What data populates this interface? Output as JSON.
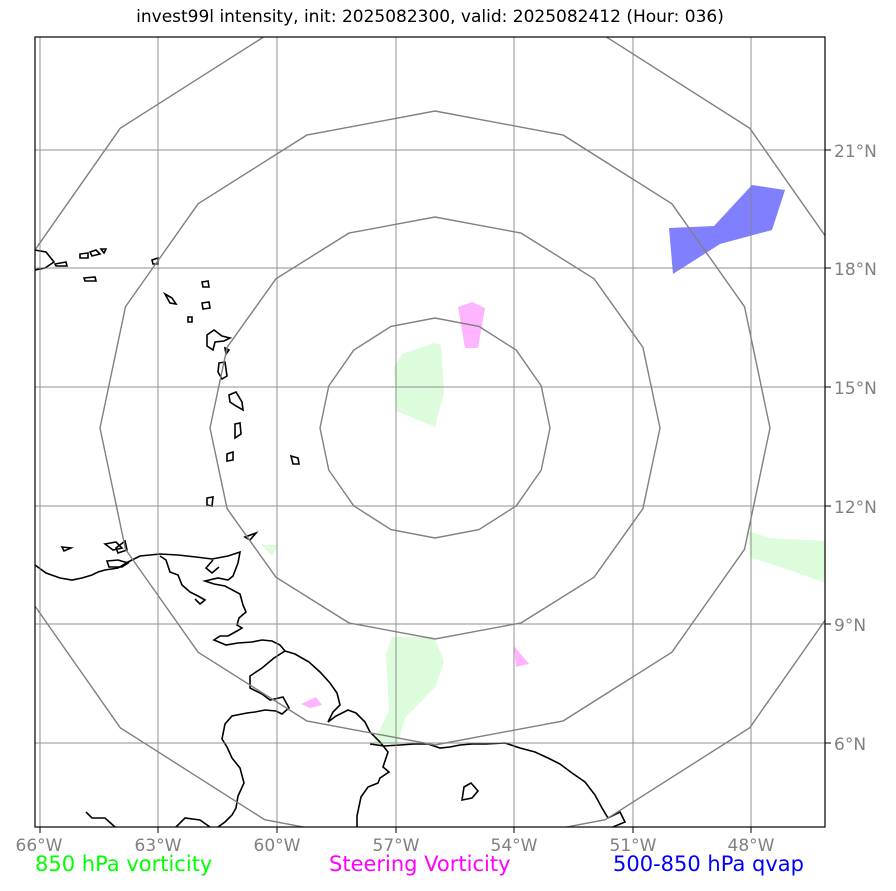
{
  "title": "invest99l intensity, init: 2025082300, valid: 2025082412 (Hour: 036)",
  "lon_labels": [
    "66°W",
    "63°W",
    "60°W",
    "57°W",
    "54°W",
    "51°W",
    "48°W"
  ],
  "lat_labels": [
    "21°N",
    "18°N",
    "15°N",
    "12°N",
    "9°N",
    "6°N"
  ],
  "legend": [
    {
      "label": "850 hPa vorticity",
      "color": "#00ff00"
    },
    {
      "label": "Steering Vorticity",
      "color": "#ff00ff"
    },
    {
      "label": "500-850 hPa qvap",
      "color": "#0000ff"
    }
  ],
  "colors": {
    "gridline": "#808080",
    "range_ring": "#808080",
    "coastline": "#000000",
    "vorticity_850_fill": "#dcfcdc",
    "steering_vorticity_fill": "#ffb4ff",
    "qvap_fill": "#8080ff"
  }
}
